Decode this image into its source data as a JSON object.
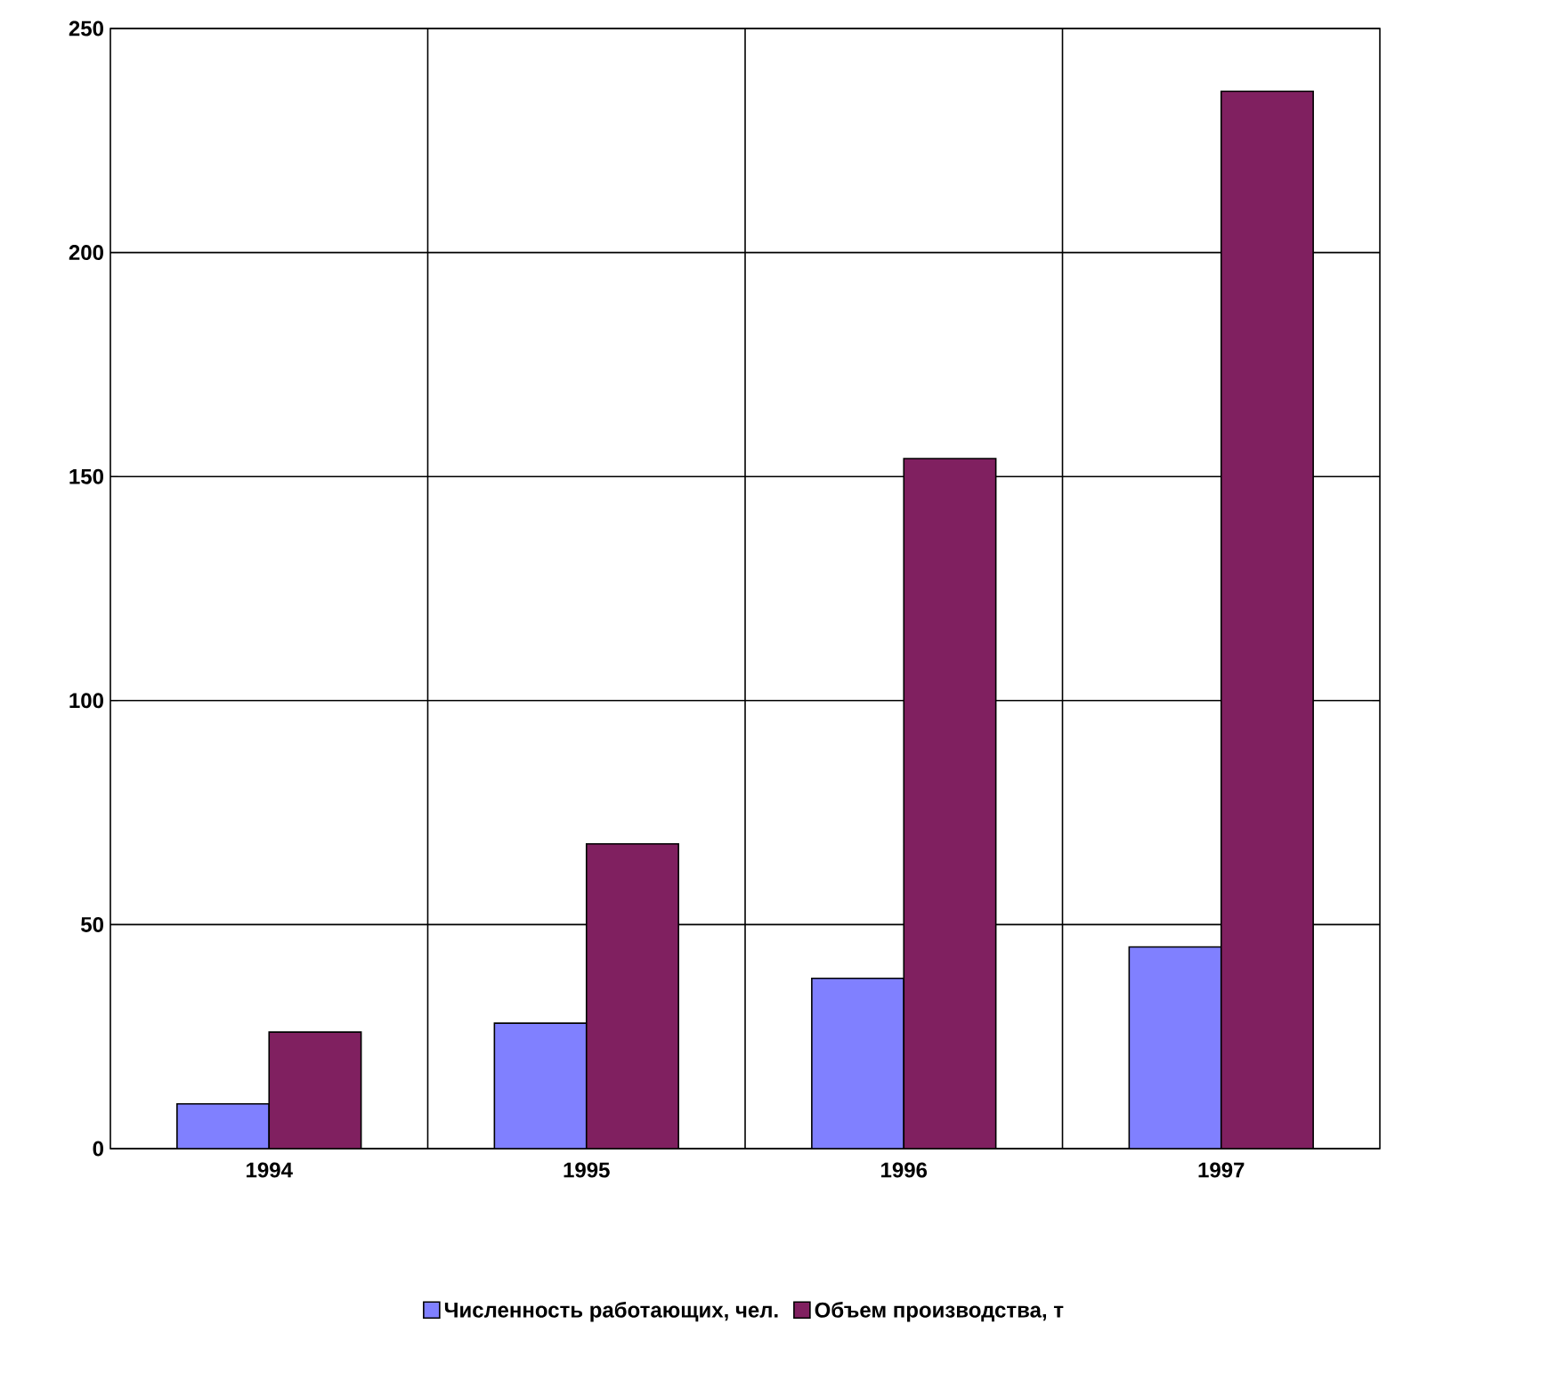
{
  "chart_data": {
    "type": "bar",
    "categories": [
      "1994",
      "1995",
      "1996",
      "1997"
    ],
    "series": [
      {
        "name": "Численность работающих, чел.",
        "color": "#8080ff",
        "values": [
          10,
          28,
          38,
          45
        ]
      },
      {
        "name": "Объем производства, т",
        "color": "#802060",
        "values": [
          26,
          68,
          154,
          236
        ]
      }
    ],
    "ylim": [
      0,
      250
    ],
    "yticks": [
      0,
      50,
      100,
      150,
      200,
      250
    ],
    "grid": true,
    "legend": "bottom"
  }
}
